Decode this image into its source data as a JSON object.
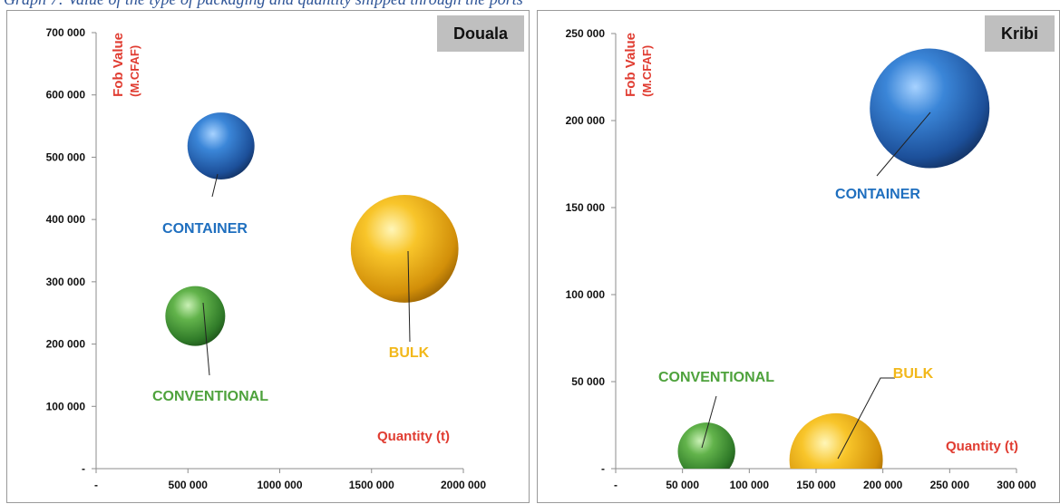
{
  "header": {
    "caption": "Graph 7: Value of the type of packaging and quantity shipped through the ports"
  },
  "colors": {
    "container": "#1f6fbf",
    "conventional": "#4ea23c",
    "bulk": "#f2b81a",
    "axis_title": "#e03c31"
  },
  "chart_data": [
    {
      "type": "scatter",
      "port": "Douala",
      "xlabel": "Quantity (t)",
      "ylabel": "Fob Value",
      "ylabel_unit": "(M.CFAF)",
      "xlim": [
        0,
        2000000
      ],
      "ylim": [
        0,
        700000
      ],
      "x_ticks": [
        "-",
        "500 000",
        "1000 000",
        "1500 000",
        "2000 000"
      ],
      "y_ticks": [
        "-",
        "100 000",
        "200 000",
        "300 000",
        "400 000",
        "500 000",
        "600 000",
        "700 000"
      ],
      "points": [
        {
          "label": "CONTAINER",
          "x": 680000,
          "y": 518000,
          "size": 0.56
        },
        {
          "label": "CONVENTIONAL",
          "x": 540000,
          "y": 245000,
          "size": 0.5
        },
        {
          "label": "BULK",
          "x": 1680000,
          "y": 353000,
          "size": 0.9
        }
      ]
    },
    {
      "type": "scatter",
      "port": "Kribi",
      "xlabel": "Quantity (t)",
      "ylabel": "Fob Value",
      "ylabel_unit": "(M.CFAF)",
      "xlim": [
        0,
        300000
      ],
      "ylim": [
        0,
        250000
      ],
      "x_ticks": [
        "-",
        "50 000",
        "100 000",
        "150 000",
        "200 000",
        "250 000",
        "300 000"
      ],
      "y_ticks": [
        "-",
        "50 000",
        "100 000",
        "150 000",
        "200 000",
        "250 000"
      ],
      "points": [
        {
          "label": "CONTAINER",
          "x": 235000,
          "y": 207000,
          "size": 1.0
        },
        {
          "label": "CONVENTIONAL",
          "x": 68000,
          "y": 10000,
          "size": 0.48
        },
        {
          "label": "BULK",
          "x": 165000,
          "y": 5000,
          "size": 0.78
        }
      ]
    }
  ]
}
